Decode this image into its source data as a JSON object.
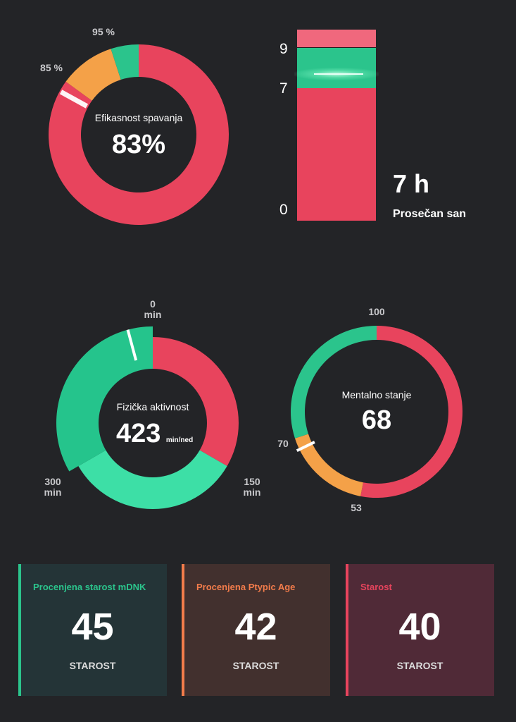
{
  "sleep_efficiency": {
    "label_85": "85 %",
    "label_95": "95 %",
    "title": "Efikasnost spavanja",
    "value": "83%",
    "value_num": 83,
    "colors": {
      "main": "#e8445d",
      "orange": "#f4a148",
      "green": "#2bc48c"
    }
  },
  "sleep_bar": {
    "tick_9": "9",
    "tick_7": "7",
    "tick_0": "0",
    "value": "7 h",
    "caption": "Prosečan san",
    "colors": {
      "low": "#e8445d",
      "ok": "#2bc48c",
      "high": "#f0687d"
    }
  },
  "activity": {
    "title": "Fizička aktivnost",
    "value": "423",
    "unit": "min/ned",
    "label_0_a": "0",
    "label_0_b": "min",
    "label_150_a": "150",
    "label_150_b": "min",
    "label_300_a": "300",
    "label_300_b": "min",
    "colors": {
      "red": "#e8445d",
      "mint": "#3ddfa6",
      "green": "#25c48c"
    }
  },
  "mental": {
    "title": "Mentalno stanje",
    "value": "68",
    "label_100": "100",
    "label_70": "70",
    "label_53": "53",
    "colors": {
      "red": "#e8445d",
      "orange": "#f4a148",
      "green": "#2bc48c"
    }
  },
  "cards": [
    {
      "title": "Procenjena starost mDNK",
      "value": "45",
      "sub": "STAROST",
      "accent": "#2bc48c",
      "bg": "#243437",
      "title_color": "#2bc48c"
    },
    {
      "title": "Procenjena Ptypic Age",
      "value": "42",
      "sub": "STAROST",
      "accent": "#f37c4b",
      "bg": "#42302e",
      "title_color": "#f37c4b"
    },
    {
      "title": "Starost",
      "value": "40",
      "sub": "STAROST",
      "accent": "#e8445d",
      "bg": "#502a37",
      "title_color": "#e8445d"
    }
  ]
}
